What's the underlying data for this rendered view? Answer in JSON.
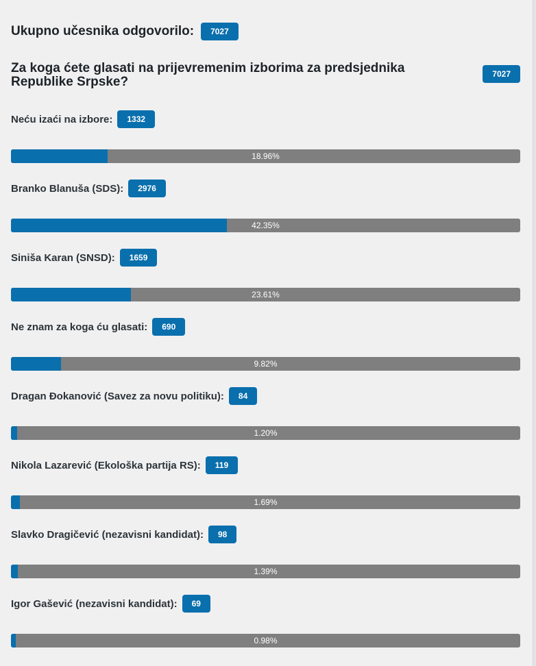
{
  "summary": {
    "label": "Ukupno učesnika odgovorilo:",
    "count": "7027"
  },
  "question": {
    "text": "Za koga ćete glasati na prijevremenim izborima za predsjednika Republike Srpske?",
    "count": "7027"
  },
  "options": [
    {
      "label": "Neću izaći na izbore:",
      "count": "1332",
      "percent": "18.96%",
      "fraction": 0.1896
    },
    {
      "label": "Branko Blanuša (SDS):",
      "count": "2976",
      "percent": "42.35%",
      "fraction": 0.4235
    },
    {
      "label": "Siniša Karan (SNSD):",
      "count": "1659",
      "percent": "23.61%",
      "fraction": 0.2361
    },
    {
      "label": "Ne znam za koga ću glasati:",
      "count": "690",
      "percent": "9.82%",
      "fraction": 0.0982
    },
    {
      "label": "Dragan Đokanović (Savez za novu politiku):",
      "count": "84",
      "percent": "1.20%",
      "fraction": 0.012
    },
    {
      "label": "Nikola Lazarević (Ekološka partija RS):",
      "count": "119",
      "percent": "1.69%",
      "fraction": 0.0169
    },
    {
      "label": "Slavko Dragičević (nezavisni kandidat):",
      "count": "98",
      "percent": "1.39%",
      "fraction": 0.0139
    },
    {
      "label": "Igor Gašević (nezavisni kandidat):",
      "count": "69",
      "percent": "0.98%",
      "fraction": 0.0098
    }
  ],
  "colors": {
    "accent": "#0a6fad",
    "track": "#7f7f7f",
    "background": "#f0f0f1"
  }
}
